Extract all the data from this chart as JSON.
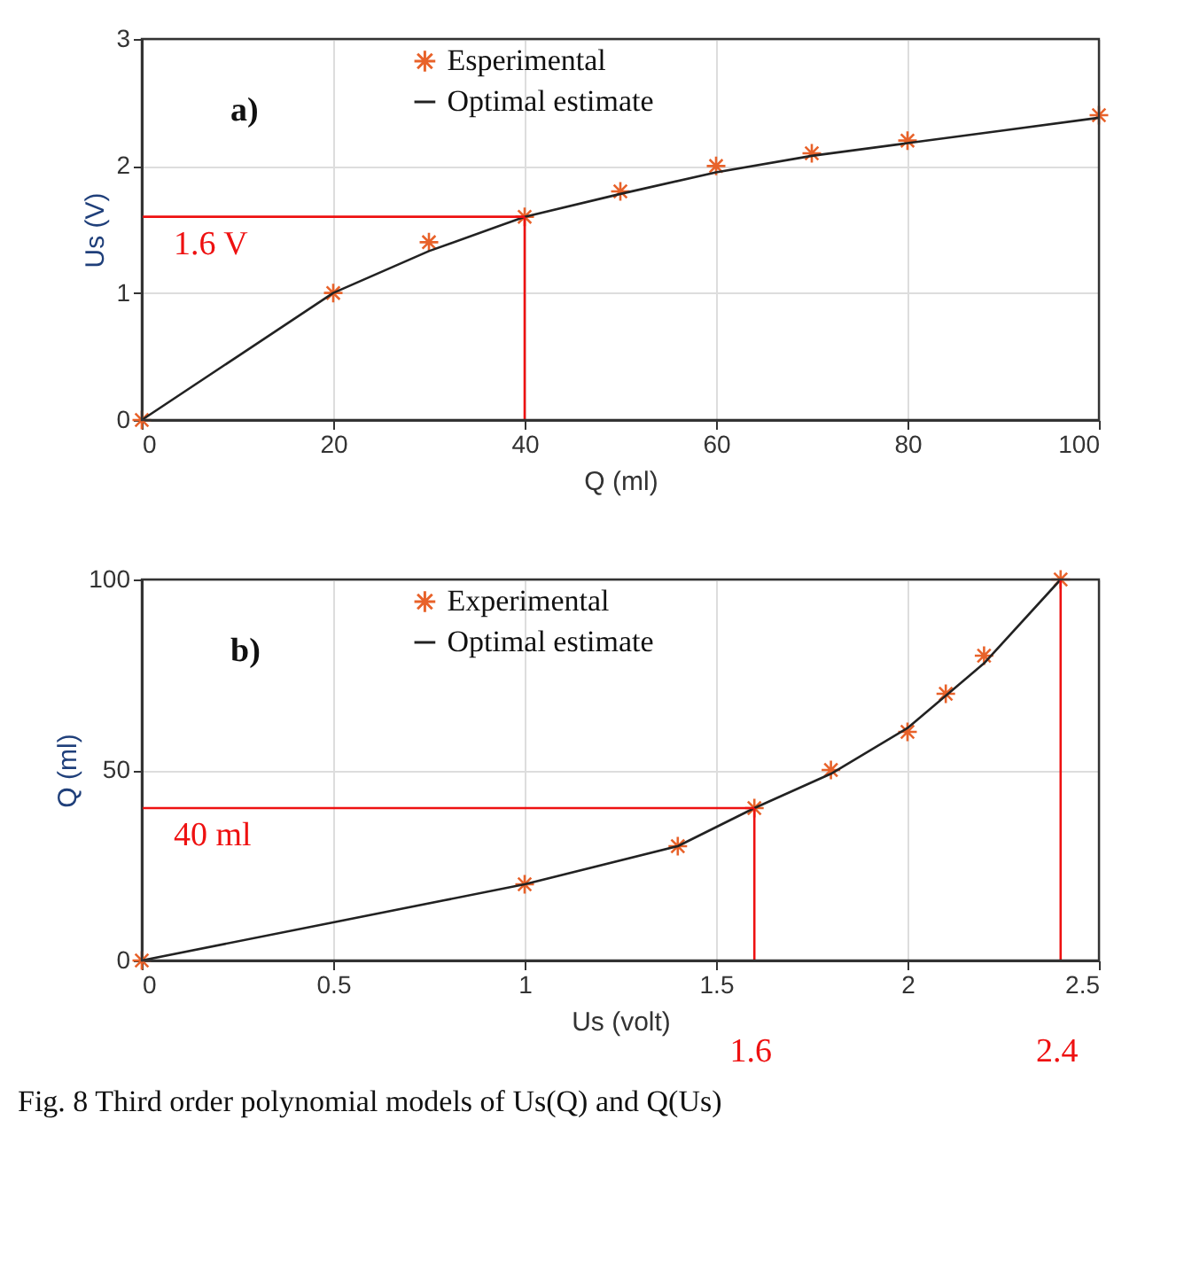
{
  "chart_data": [
    {
      "type": "line",
      "xlabel": "Q (ml)",
      "ylabel": "Us (V)",
      "xlim": [
        0,
        100
      ],
      "ylim": [
        0,
        3
      ],
      "xticks": [
        0,
        20,
        40,
        60,
        80,
        100
      ],
      "yticks": [
        0,
        1,
        2,
        3
      ],
      "grid": true,
      "legend": "top",
      "annotations": [
        "a)"
      ],
      "series": [
        {
          "name": "Esperimental",
          "type": "scatter",
          "marker": "cross",
          "color": "#e8622a",
          "x": [
            0,
            20,
            30,
            40,
            50,
            60,
            70,
            80,
            100
          ],
          "values": [
            0,
            1,
            1.4,
            1.6,
            1.8,
            2.0,
            2.1,
            2.2,
            2.4
          ]
        },
        {
          "name": "Optimal estimate",
          "marker": "none",
          "color": "#222222",
          "x": [
            0,
            10,
            20,
            30,
            40,
            50,
            60,
            70,
            80,
            90,
            100
          ],
          "values": [
            0,
            0.5,
            1.0,
            1.33,
            1.6,
            1.78,
            1.95,
            2.08,
            2.18,
            2.28,
            2.38
          ]
        }
      ],
      "ref_lines": [
        {
          "axis": "y",
          "value": 1.6,
          "label": "1.6 V",
          "color": "#ee1111"
        },
        {
          "axis": "x",
          "value": 40,
          "label": null,
          "color": "#ee1111"
        }
      ]
    },
    {
      "type": "line",
      "xlabel": "Us (volt)",
      "ylabel": "Q (ml)",
      "xlim": [
        0,
        2.5
      ],
      "ylim": [
        0,
        100
      ],
      "xticks": [
        0,
        0.5,
        1,
        1.5,
        2,
        2.5
      ],
      "yticks": [
        0,
        50,
        100
      ],
      "grid": true,
      "legend": "top",
      "annotations": [
        "b)",
        "Fig. 8 Third order polynomial models of Us(Q) and Q(Us)"
      ],
      "series": [
        {
          "name": "Experimental",
          "type": "scatter",
          "marker": "cross",
          "color": "#e8622a",
          "x": [
            0,
            1,
            1.4,
            1.6,
            1.8,
            2.0,
            2.1,
            2.2,
            2.4
          ],
          "values": [
            0,
            20,
            30,
            40,
            50,
            60,
            70,
            80,
            100
          ]
        },
        {
          "name": "Optimal estimate",
          "marker": "none",
          "color": "#222222",
          "x": [
            0,
            0.5,
            1,
            1.4,
            1.6,
            1.8,
            2.0,
            2.2,
            2.4
          ],
          "values": [
            0,
            10,
            20,
            30,
            40,
            49,
            61,
            78,
            100
          ]
        }
      ],
      "ref_lines": [
        {
          "axis": "y",
          "value": 40,
          "label": "40 ml",
          "color": "#ee1111"
        },
        {
          "axis": "x",
          "value": 1.6,
          "label": "1.6",
          "color": "#ee1111"
        },
        {
          "axis": "x",
          "value": 2.4,
          "label": "2.4",
          "color": "#ee1111"
        }
      ]
    }
  ]
}
